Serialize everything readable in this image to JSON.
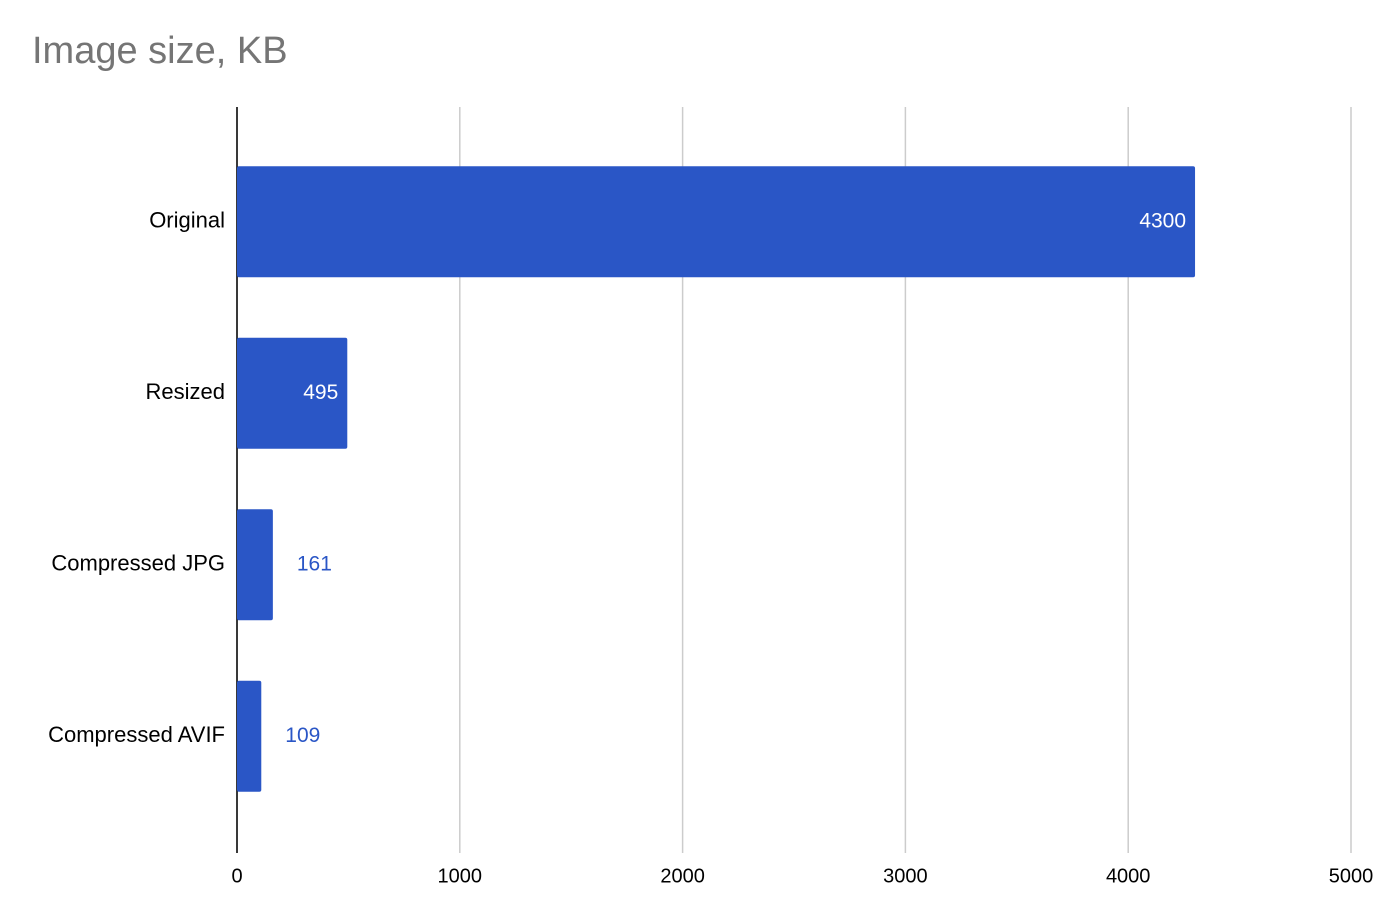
{
  "chart_data": {
    "type": "bar",
    "title": "Image size, KB",
    "categories": [
      "Original",
      "Resized",
      "Compressed JPG",
      "Compressed AVIF"
    ],
    "values": [
      4300,
      495,
      161,
      109
    ],
    "color": "#2a56c6",
    "xlim": [
      0,
      5000
    ],
    "xticks": [
      0,
      1000,
      2000,
      3000,
      4000,
      5000
    ],
    "grid": true
  }
}
